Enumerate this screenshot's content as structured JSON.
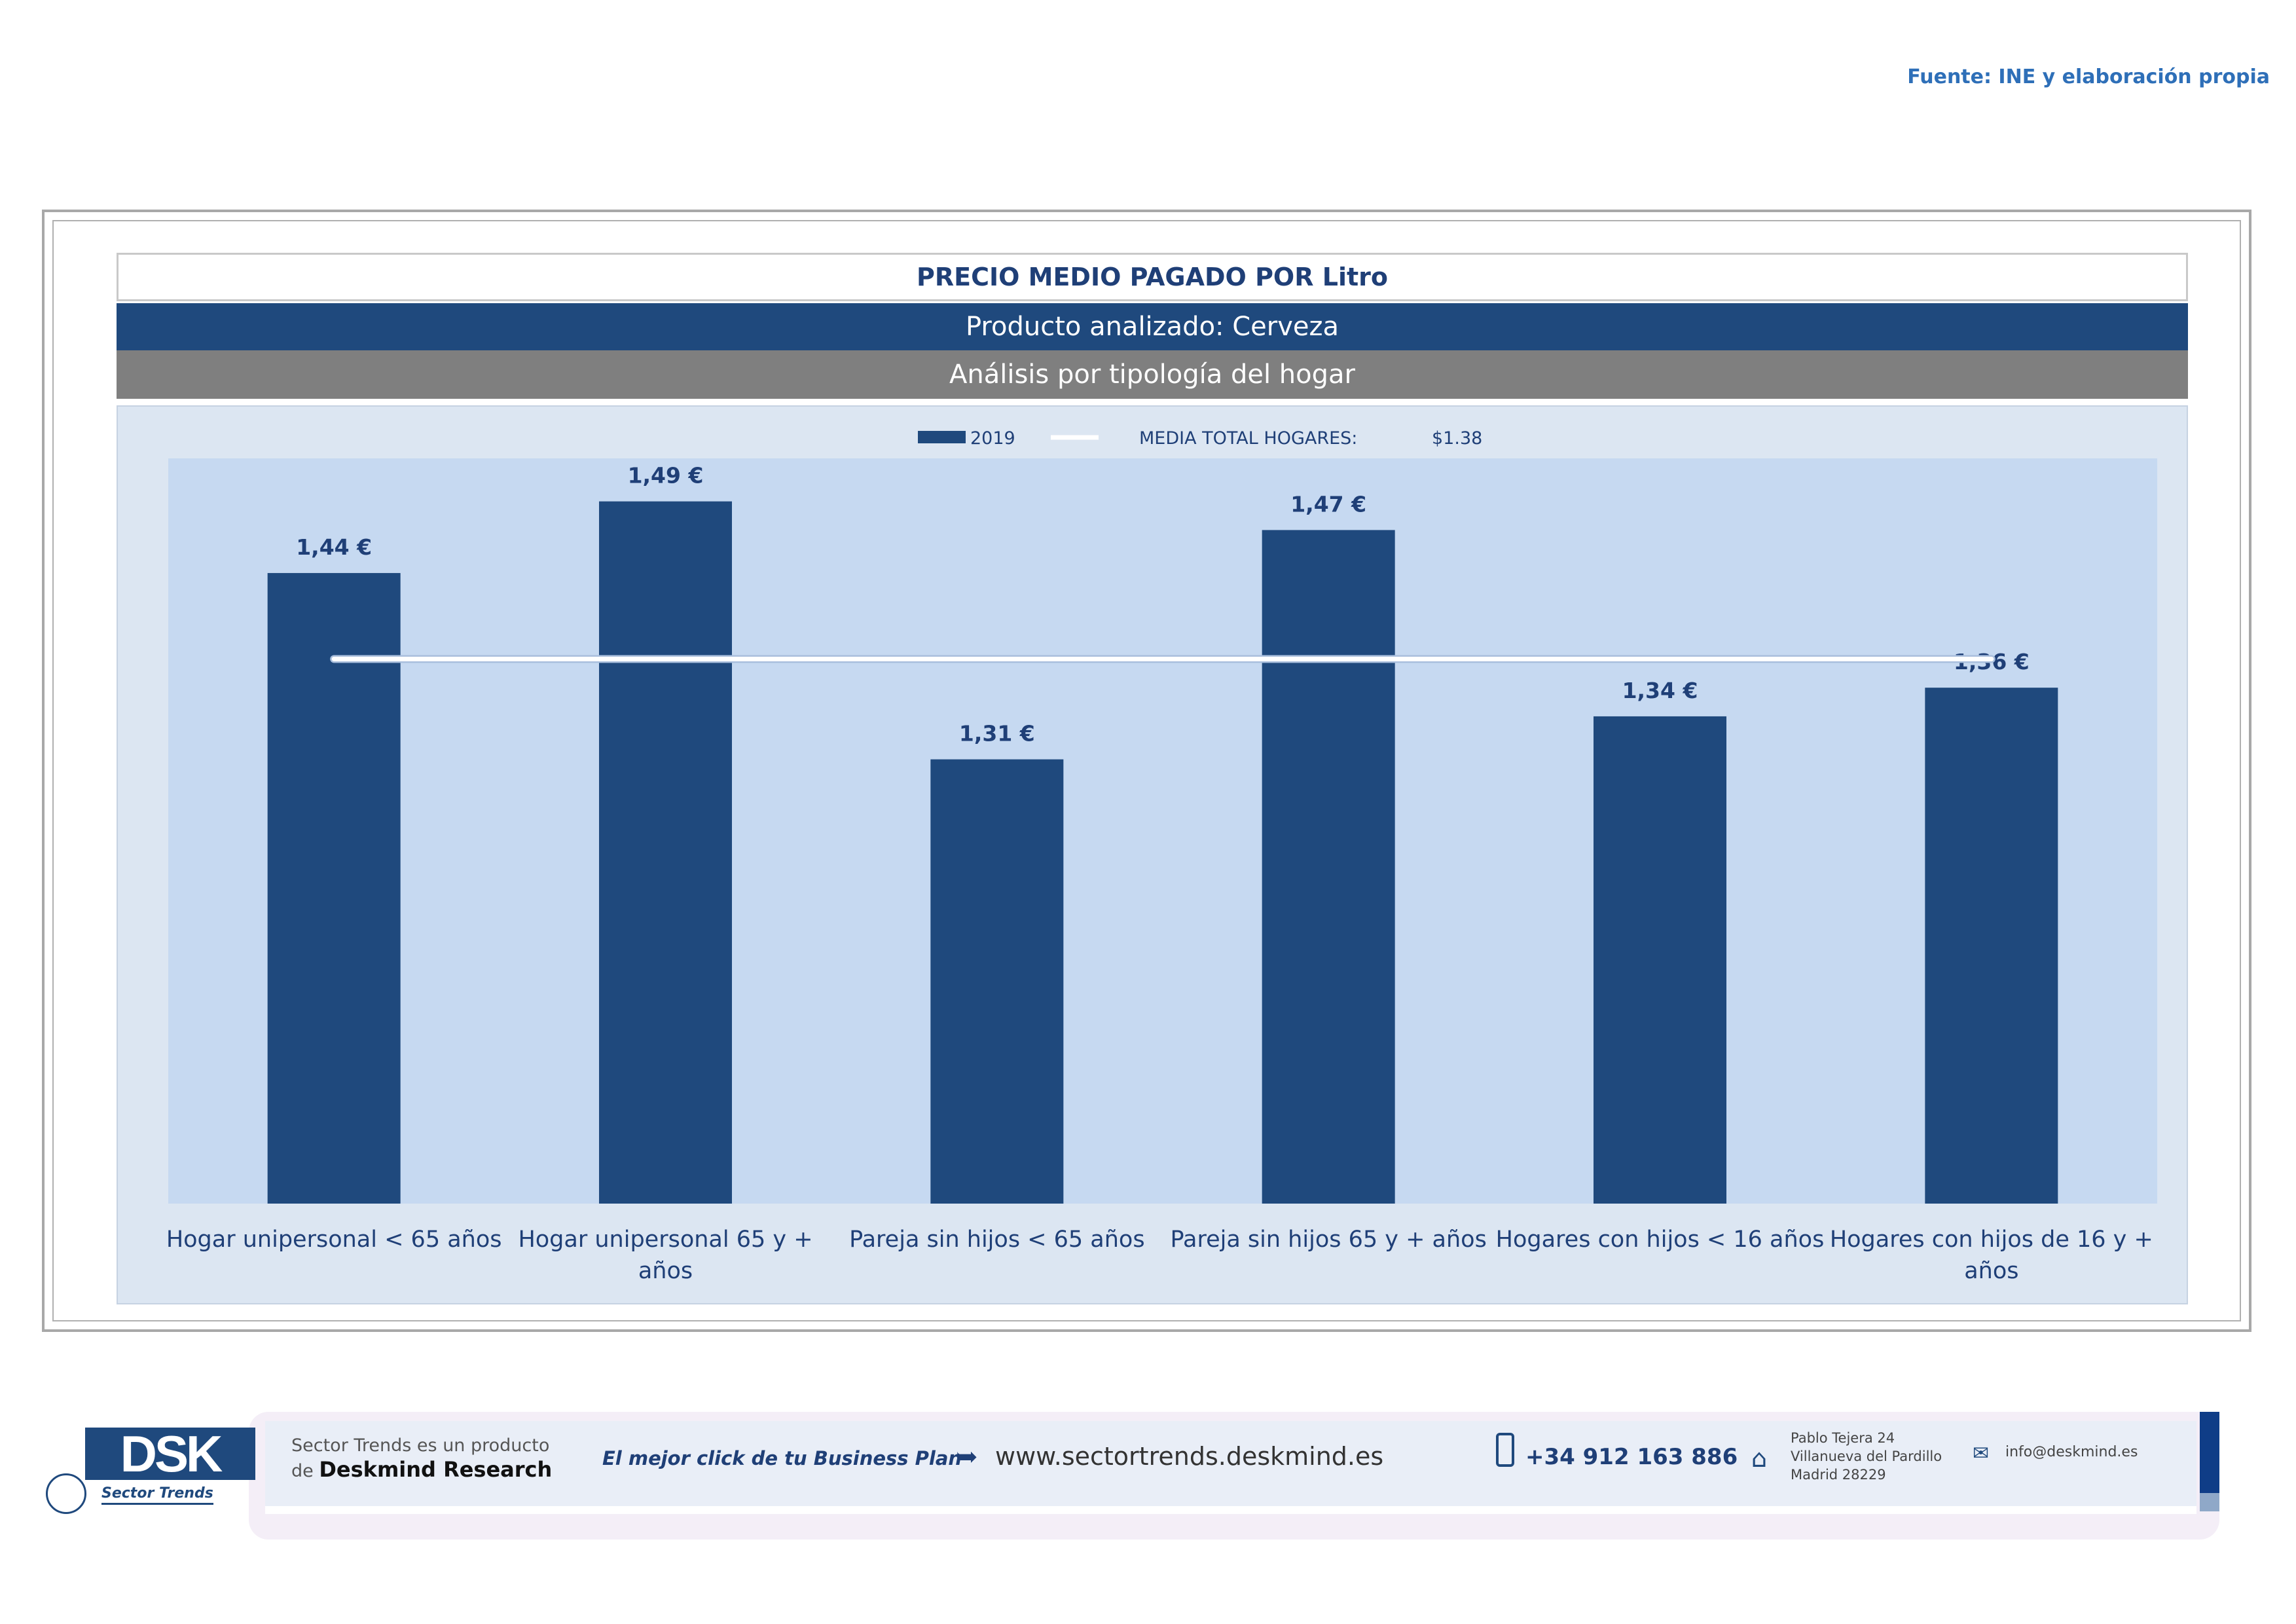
{
  "source": "Fuente: INE y elaboración propia",
  "header": {
    "title": "PRECIO MEDIO PAGADO POR Litro",
    "subtitle": "Producto analizado: Cerveza",
    "analysis": "Análisis por tipología del hogar"
  },
  "colors": {
    "bar": "#1f497d",
    "plot_bg": "#c6d9f1",
    "area_bg": "#dce6f2",
    "avg_line": "#ffffff"
  },
  "chart_data": {
    "type": "bar",
    "categories": [
      [
        "Hogar unipersonal < 65 años"
      ],
      [
        "Hogar unipersonal  65 y +",
        "años"
      ],
      [
        "Pareja sin hijos < 65 años"
      ],
      [
        "Pareja sin hijos 65 y + años"
      ],
      [
        "Hogares con hijos < 16 años"
      ],
      [
        "Hogares con hijos de 16 y +",
        "años"
      ]
    ],
    "series": [
      {
        "name": "2019",
        "values": [
          1.44,
          1.49,
          1.31,
          1.47,
          1.34,
          1.36
        ],
        "labels": [
          "1,44 €",
          "1,49 €",
          "1,31 €",
          "1,47 €",
          "1,34 €",
          "1,36 €"
        ]
      }
    ],
    "reference_line": {
      "name": "MEDIA TOTAL  HOGARES:",
      "value": 1.38,
      "value_label": "$1.38"
    },
    "ylim": [
      1.0,
      1.52
    ],
    "legend": "top-center",
    "grid": false
  },
  "footer": {
    "logo_text": "DSK",
    "logo_sub": "Sector Trends",
    "product_line": "Sector Trends es un producto",
    "company_prefix": "de",
    "company": "Deskmind Research",
    "slogan": "El mejor click de tu Business Plan",
    "website": "www.sectortrends.deskmind.es",
    "phone": "+34 912 163 886",
    "address": [
      "Pablo Tejera 24",
      "Villanueva del Pardillo",
      "Madrid 28229"
    ],
    "email": "info@deskmind.es"
  }
}
